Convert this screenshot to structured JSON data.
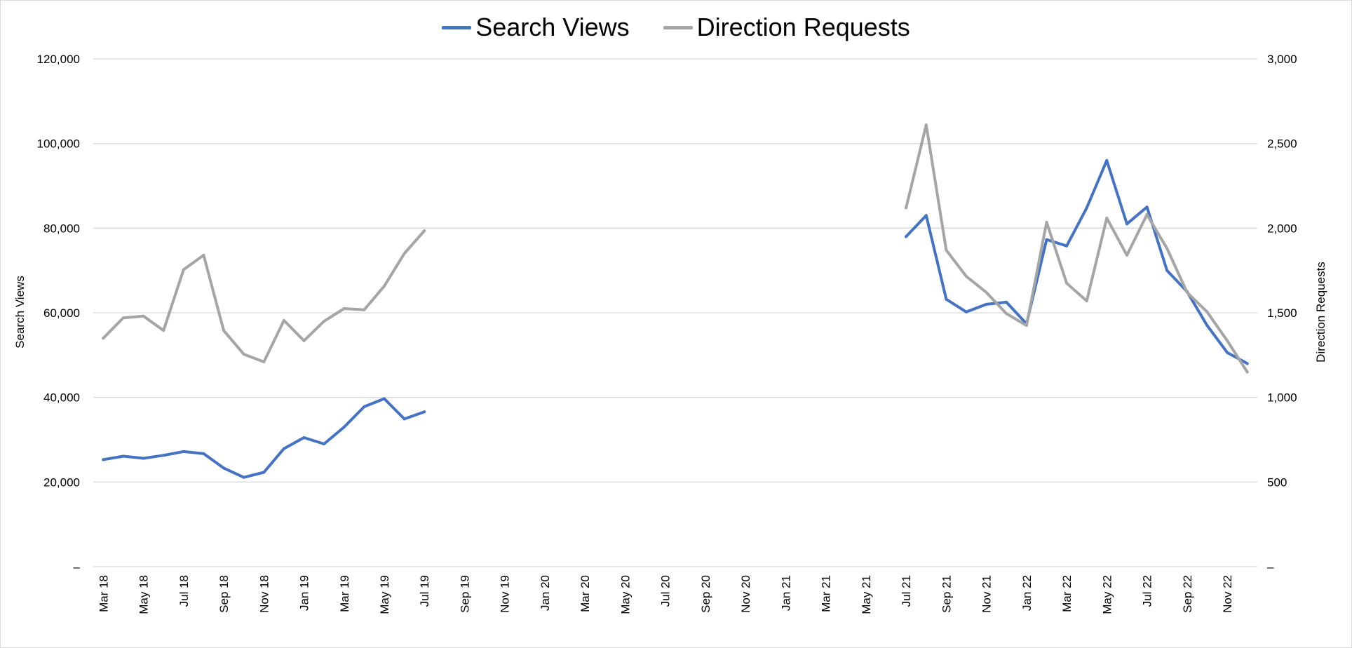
{
  "chart_data": {
    "type": "line",
    "title": "",
    "legend_position": "top",
    "grid": true,
    "colors": {
      "Search Views": "#4472C4",
      "Direction Requests": "#A5A5A5"
    },
    "categories": [
      "Mar 18",
      "Apr 18",
      "May 18",
      "Jun 18",
      "Jul 18",
      "Aug 18",
      "Sep 18",
      "Oct 18",
      "Nov 18",
      "Dec 18",
      "Jan 19",
      "Feb 19",
      "Mar 19",
      "Apr 19",
      "May 19",
      "Jun 19",
      "Jul 19",
      "Aug 19",
      "Sep 19",
      "Oct 19",
      "Nov 19",
      "Dec 19",
      "Jan 20",
      "Feb 20",
      "Mar 20",
      "Apr 20",
      "May 20",
      "Jun 20",
      "Jul 20",
      "Aug 20",
      "Sep 20",
      "Oct 20",
      "Nov 20",
      "Dec 20",
      "Jan 21",
      "Feb 21",
      "Mar 21",
      "Apr 21",
      "May 21",
      "Jun 21",
      "Jul 21",
      "Aug 21",
      "Sep 21",
      "Oct 21",
      "Nov 21",
      "Dec 21",
      "Jan 22",
      "Feb 22",
      "Mar 22",
      "Apr 22",
      "May 22",
      "Jun 22",
      "Jul 22",
      "Aug 22",
      "Sep 22",
      "Oct 22",
      "Nov 22",
      "Dec 22"
    ],
    "x_tick_labels": [
      "Mar 18",
      "May 18",
      "Jul 18",
      "Sep 18",
      "Nov 18",
      "Jan 19",
      "Mar 19",
      "May 19",
      "Jul 19",
      "Sep 19",
      "Nov 19",
      "Jan 20",
      "Mar 20",
      "May 20",
      "Jul 20",
      "Sep 20",
      "Nov 20",
      "Jan 21",
      "Mar 21",
      "May 21",
      "Jul 21",
      "Sep 21",
      "Nov 21",
      "Jan 22",
      "Mar 22",
      "May 22",
      "Jul 22",
      "Sep 22",
      "Nov 22"
    ],
    "series": [
      {
        "name": "Search Views",
        "axis": "left",
        "values": [
          25300,
          26100,
          25600,
          26300,
          27200,
          26700,
          23300,
          21100,
          22300,
          27900,
          30500,
          29000,
          33000,
          37800,
          39700,
          34900,
          36600,
          null,
          null,
          null,
          null,
          null,
          null,
          null,
          null,
          null,
          null,
          null,
          null,
          null,
          null,
          null,
          null,
          null,
          null,
          null,
          null,
          null,
          null,
          null,
          78000,
          83000,
          63200,
          60200,
          62000,
          62500,
          57400,
          77300,
          75800,
          84800,
          96000,
          81000,
          85000,
          70000,
          65000,
          57000,
          50600,
          48000
        ]
      },
      {
        "name": "Direction Requests",
        "axis": "right",
        "values": [
          1350,
          1470,
          1480,
          1395,
          1755,
          1840,
          1395,
          1255,
          1210,
          1455,
          1335,
          1450,
          1525,
          1518,
          1658,
          1850,
          1985,
          null,
          null,
          null,
          null,
          null,
          null,
          null,
          null,
          null,
          null,
          null,
          null,
          null,
          null,
          null,
          null,
          null,
          null,
          null,
          null,
          null,
          null,
          null,
          2120,
          2610,
          1870,
          1715,
          1620,
          1495,
          1425,
          2035,
          1675,
          1570,
          2060,
          1840,
          2080,
          1880,
          1620,
          1505,
          1335,
          1150
        ]
      }
    ],
    "y_left": {
      "label": "Search Views",
      "min": 0,
      "max": 120000,
      "ticks": [
        "–",
        "20,000",
        "40,000",
        "60,000",
        "80,000",
        "100,000",
        "120,000"
      ]
    },
    "y_right": {
      "label": "Direction Requests",
      "min": 0,
      "max": 3000,
      "ticks": [
        "–",
        "500",
        "1,000",
        "1,500",
        "2,000",
        "2,500",
        "3,000"
      ]
    }
  }
}
